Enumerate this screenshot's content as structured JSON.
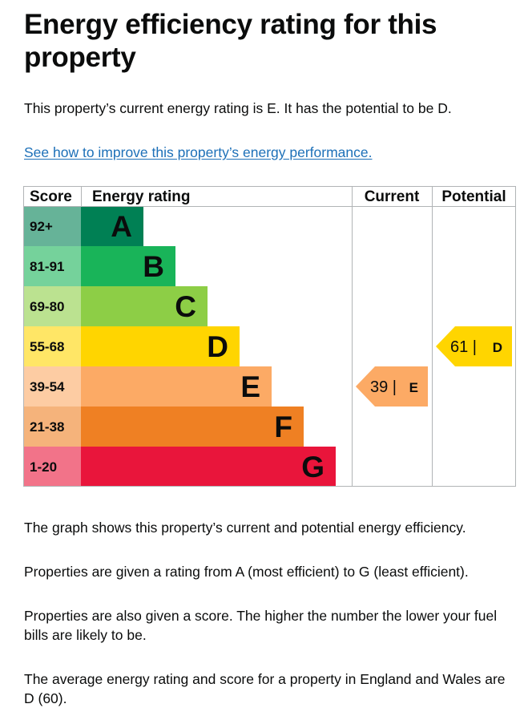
{
  "page": {
    "title": "Energy efficiency rating for this property",
    "intro": "This property’s current energy rating is E. It has the potential to be D.",
    "improve_link": "See how to improve this property’s energy performance.",
    "para1": "The graph shows this property’s current and potential energy efficiency.",
    "para2": "Properties are given a rating from A (most efficient) to G (least efficient).",
    "para3": "Properties are also given a score. The higher the number the lower your fuel bills are likely to be.",
    "para4": "The average energy rating and score for a property in England and Wales are D (60)."
  },
  "chart_data": {
    "type": "table",
    "headers": {
      "score": "Score",
      "rating": "Energy rating",
      "current": "Current",
      "potential": "Potential"
    },
    "bands": [
      {
        "letter": "A",
        "score": "92+",
        "color": "#008054",
        "score_bg": "#66b398"
      },
      {
        "letter": "B",
        "score": "81-91",
        "color": "#19b459",
        "score_bg": "#75d29b"
      },
      {
        "letter": "C",
        "score": "69-80",
        "color": "#8dce46",
        "score_bg": "#bbe290"
      },
      {
        "letter": "D",
        "score": "55-68",
        "color": "#ffd500",
        "score_bg": "#ffe666"
      },
      {
        "letter": "E",
        "score": "39-54",
        "color": "#fcaa65",
        "score_bg": "#fdcca3"
      },
      {
        "letter": "F",
        "score": "21-38",
        "color": "#ef8023",
        "score_bg": "#f5b37b"
      },
      {
        "letter": "G",
        "score": "1-20",
        "color": "#e9153b",
        "score_bg": "#f27389"
      }
    ],
    "current": {
      "value": 39,
      "rating": "E",
      "label": "39 |",
      "color": "#fcaa65"
    },
    "potential": {
      "value": 61,
      "rating": "D",
      "label": "61 |",
      "color": "#ffd500"
    }
  }
}
